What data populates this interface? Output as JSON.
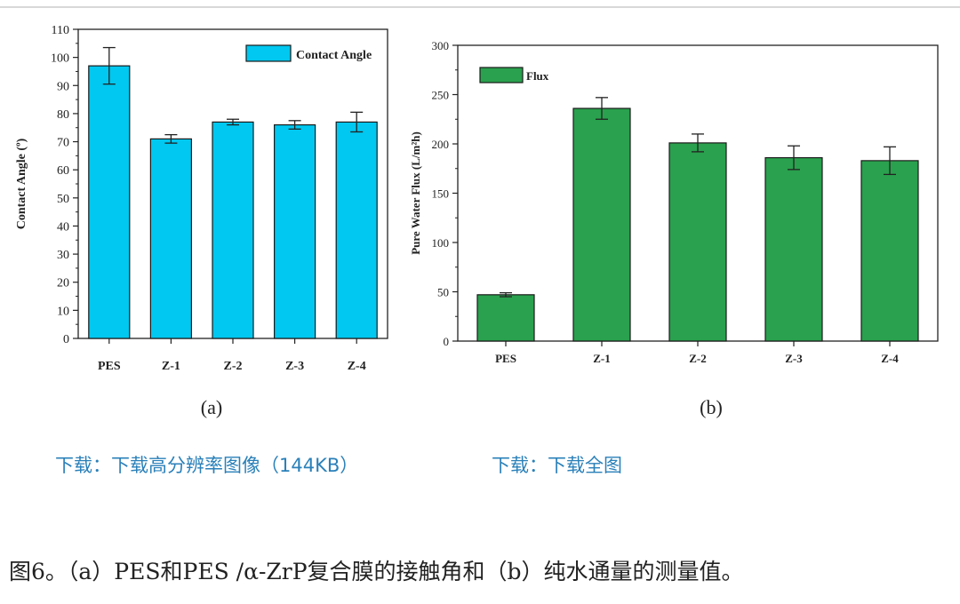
{
  "chart_data": [
    {
      "type": "bar",
      "panel_label": "(a)",
      "categories": [
        "PES",
        "Z-1",
        "Z-2",
        "Z-3",
        "Z-4"
      ],
      "series": [
        {
          "name": "Contact Angle",
          "values": [
            97,
            71,
            77,
            76,
            77
          ],
          "errors": [
            6.5,
            1.5,
            1.0,
            1.5,
            3.5
          ]
        }
      ],
      "ylabel": "Contact Angle (º)",
      "ylim": [
        0,
        110
      ],
      "yticks": [
        0,
        10,
        20,
        30,
        40,
        50,
        60,
        70,
        80,
        90,
        100,
        110
      ],
      "color": "#00c8f0",
      "legend_position": "top-right",
      "grid": false
    },
    {
      "type": "bar",
      "panel_label": "(b)",
      "categories": [
        "PES",
        "Z-1",
        "Z-2",
        "Z-3",
        "Z-4"
      ],
      "series": [
        {
          "name": "Flux",
          "values": [
            47,
            236,
            201,
            186,
            183
          ],
          "errors": [
            2,
            11,
            9,
            12,
            14
          ]
        }
      ],
      "ylabel": "Pure Water Flux  (L/m²h)",
      "ylim": [
        0,
        300
      ],
      "yticks": [
        0,
        50,
        100,
        150,
        200,
        250,
        300
      ],
      "color": "#2aa14e",
      "legend_position": "top-left",
      "grid": false
    }
  ],
  "links": {
    "download_hires": "下载：下载高分辨率图像（144KB）",
    "download_full": "下载：下载全图"
  },
  "caption": "图6。（a）PES和PES /α-ZrP复合膜的接触角和（b）纯水通量的测量值。"
}
